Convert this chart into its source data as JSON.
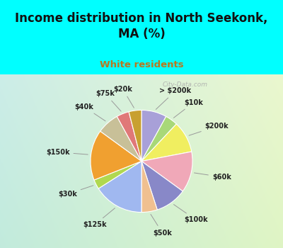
{
  "title": "Income distribution in North Seekonk,\nMA (%)",
  "subtitle": "White residents",
  "title_color": "#111111",
  "subtitle_color": "#b87820",
  "bg_outer": "#00FFFF",
  "labels": [
    "> $200k",
    "$10k",
    "$200k",
    "$60k",
    "$100k",
    "$50k",
    "$125k",
    "$30k",
    "$150k",
    "$40k",
    "$75k",
    "$20k"
  ],
  "values": [
    8,
    4,
    10,
    13,
    10,
    5,
    16,
    3,
    16,
    7,
    4,
    4
  ],
  "colors": [
    "#a8a0d8",
    "#a8d878",
    "#f0ee60",
    "#f0a8b8",
    "#8888c8",
    "#f0c090",
    "#a0b8f0",
    "#b0d850",
    "#f0a030",
    "#c8c098",
    "#e07878",
    "#c8a030"
  ],
  "watermark": "City-Data.com",
  "startangle": 90
}
